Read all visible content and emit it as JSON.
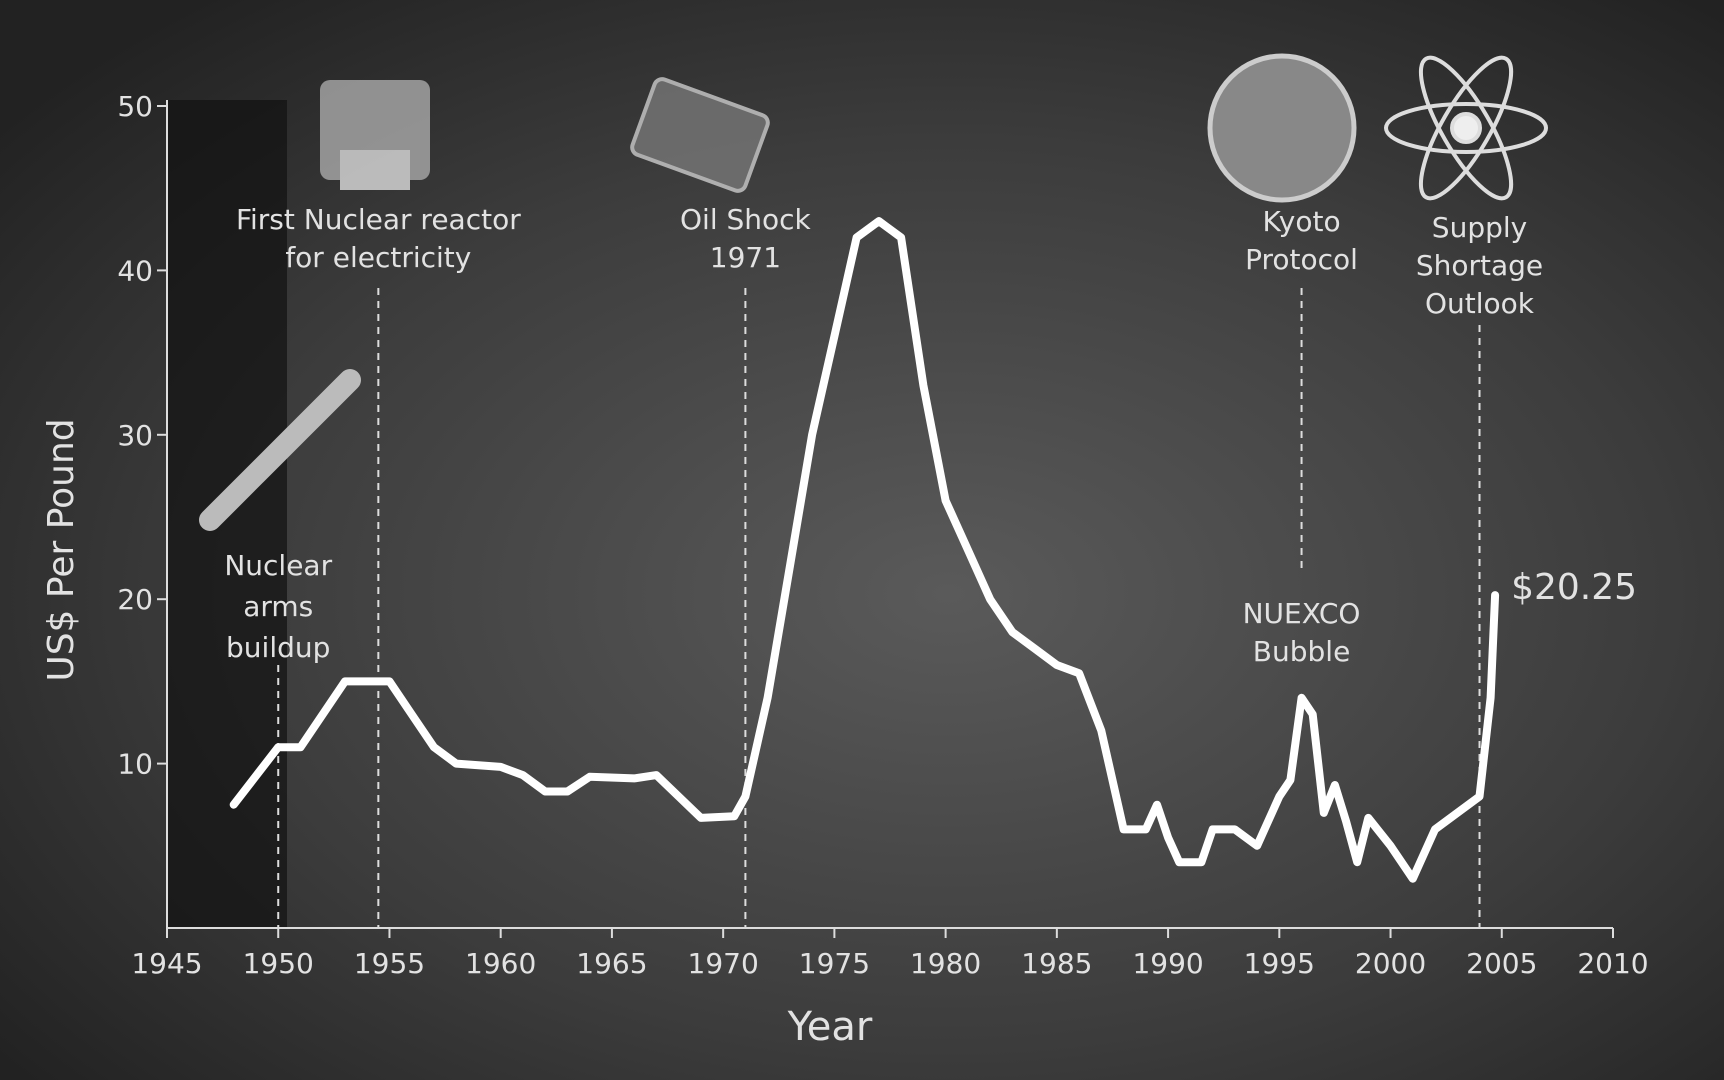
{
  "chart_data": {
    "type": "line",
    "x_label": "Year",
    "y_label": "US$ Per Pound",
    "xlim": [
      1945,
      2010
    ],
    "xticks": [
      1945,
      1950,
      1955,
      1960,
      1965,
      1970,
      1975,
      1980,
      1985,
      1990,
      1995,
      2000,
      2005,
      2010
    ],
    "ylim": [
      0,
      50
    ],
    "yticks": [
      10,
      20,
      30,
      40,
      50
    ],
    "color": "#ffffff",
    "x": [
      1948,
      1950,
      1951,
      1953,
      1955,
      1956,
      1957,
      1958,
      1960,
      1961,
      1962,
      1963,
      1964,
      1966,
      1967,
      1969,
      1970.5,
      1971,
      1972,
      1973,
      1974,
      1975,
      1976,
      1977,
      1978,
      1979,
      1980,
      1981,
      1982,
      1983,
      1984,
      1985,
      1986,
      1987,
      1988,
      1989,
      1989.5,
      1990,
      1990.5,
      1991.5,
      1992,
      1993,
      1994,
      1995,
      1995.5,
      1996,
      1996.5,
      1997,
      1997.5,
      1998,
      1998.5,
      1999,
      2000,
      2001,
      2002,
      2003,
      2004,
      2004.5,
      2004.7
    ],
    "values": [
      7.5,
      11,
      11,
      15,
      15,
      13,
      11,
      10,
      9.8,
      9.3,
      8.3,
      8.3,
      9.2,
      9.1,
      9.3,
      6.7,
      6.8,
      8,
      14,
      22,
      30,
      36,
      42,
      43,
      42,
      33,
      26,
      23,
      20,
      18,
      17,
      16,
      15.5,
      12,
      6,
      6,
      7.5,
      5.5,
      4,
      4,
      6,
      6,
      5,
      8,
      9,
      14,
      13,
      7,
      8.7,
      6.5,
      4,
      6.7,
      5,
      3,
      6,
      7,
      8,
      14,
      20.25
    ],
    "value_labels": [
      null,
      null,
      null,
      null,
      null,
      null,
      null,
      null,
      null,
      null,
      null,
      null,
      null,
      null,
      null,
      null,
      null,
      null,
      null,
      null,
      null,
      null,
      null,
      null,
      null,
      null,
      null,
      null,
      null,
      null,
      null,
      null,
      null,
      null,
      null,
      null,
      null,
      null,
      null,
      null,
      null,
      null,
      null,
      null,
      null,
      null,
      null,
      null,
      null,
      null,
      null,
      null,
      null,
      null,
      null,
      null,
      null,
      null,
      "$20.25"
    ],
    "annotations": [
      {
        "label": [
          "Nuclear",
          "arms",
          "buildup"
        ],
        "x": 1950
      },
      {
        "label": [
          "First Nuclear reactor",
          "for electricity"
        ],
        "x": 1954.5
      },
      {
        "label": [
          "Oil Shock",
          "1971"
        ],
        "x": 1971
      },
      {
        "label": [
          "Kyoto",
          "Protocol"
        ],
        "x": 1996
      },
      {
        "label": [
          "Supply",
          "Shortage",
          "Outlook"
        ],
        "x": 2004
      },
      {
        "label": [
          "NUEXCO",
          "Bubble"
        ],
        "x": 1996
      }
    ]
  }
}
